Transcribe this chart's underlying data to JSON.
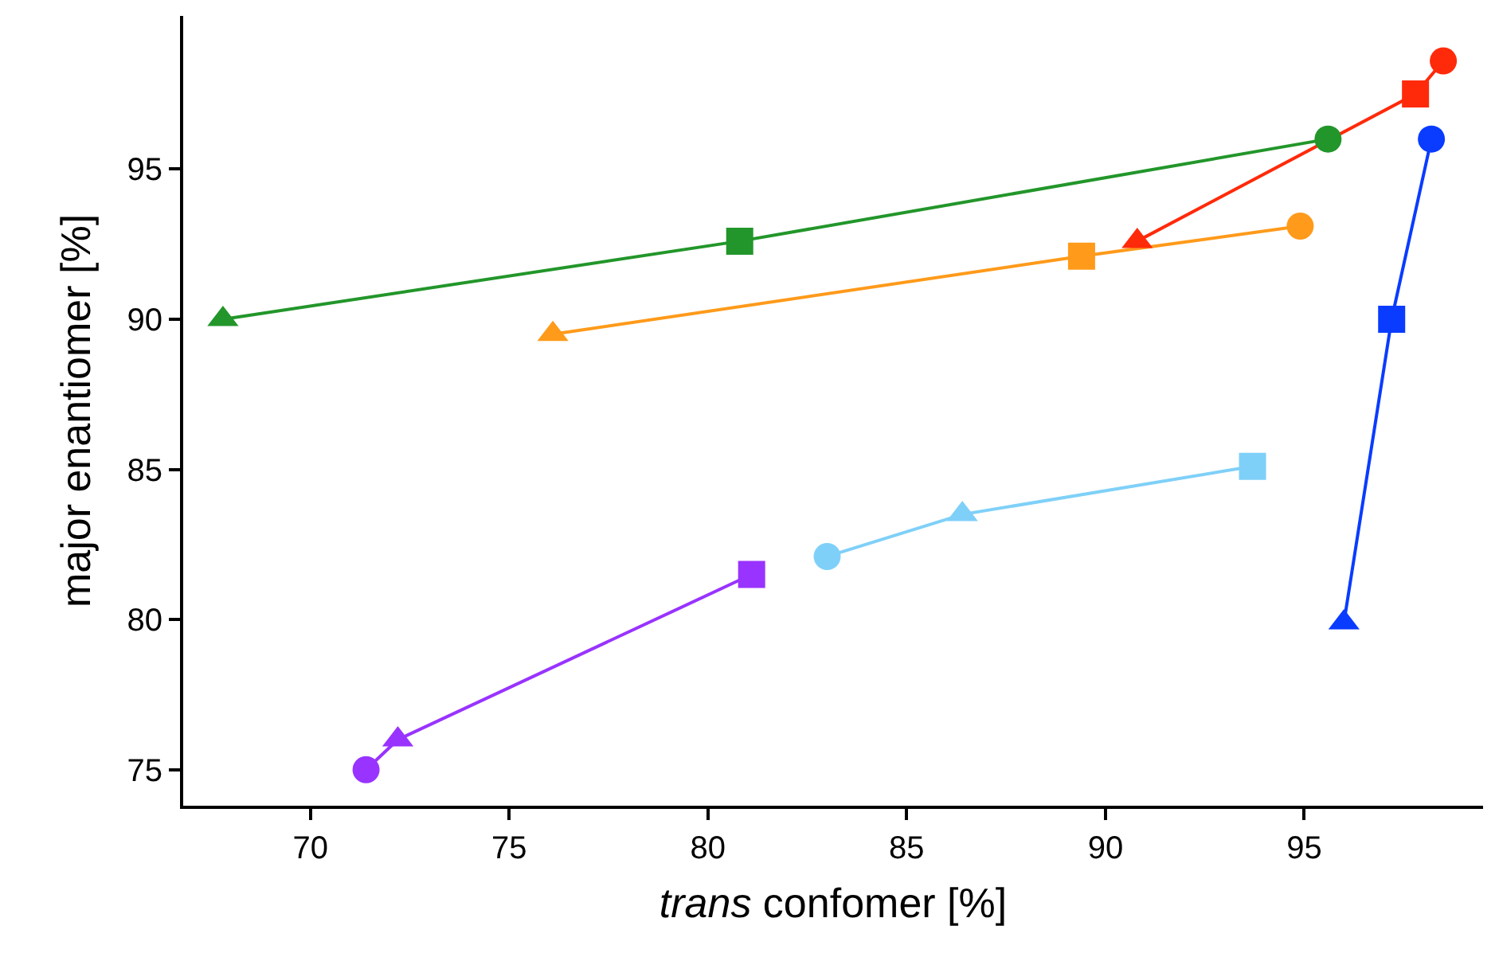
{
  "chart_data": {
    "type": "line",
    "xlabel": "trans confomer [%]",
    "ylabel": "major enantiomer [%]",
    "xlim": [
      66.8,
      99.5
    ],
    "ylim": [
      73.8,
      100.1
    ],
    "xticks": [
      70,
      75,
      80,
      85,
      90,
      95
    ],
    "yticks": [
      75,
      80,
      85,
      90,
      95
    ],
    "series": [
      {
        "marker": "none",
        "color": "#22962a",
        "x": [
          67.8,
          80.8,
          95.6
        ],
        "values": [
          90.0,
          92.6,
          96.0
        ]
      },
      {
        "marker": "none",
        "color": "#ff9a1a",
        "x": [
          76.1,
          89.4,
          94.9
        ],
        "values": [
          89.5,
          92.1,
          93.1
        ]
      },
      {
        "marker": "none",
        "color": "#ff2a0a",
        "x": [
          90.8,
          97.8,
          98.5
        ],
        "values": [
          92.6,
          97.5,
          98.6
        ]
      },
      {
        "marker": "none",
        "color": "#0a3cff",
        "x": [
          96.0,
          97.2,
          98.2
        ],
        "values": [
          79.9,
          90.0,
          96.0
        ]
      },
      {
        "marker": "none",
        "color": "#7fd0f8",
        "x": [
          83.0,
          86.4,
          93.7
        ],
        "values": [
          82.1,
          83.5,
          85.1
        ]
      },
      {
        "marker": "none",
        "color": "#9933ff",
        "x": [
          71.4,
          72.2,
          81.1
        ],
        "values": [
          75.0,
          76.0,
          81.5
        ]
      },
      {
        "type": "scatter",
        "marker": "circle",
        "x": [
          95.6,
          94.9,
          98.5,
          98.2,
          83.0,
          71.4
        ],
        "values": [
          96.0,
          93.1,
          98.6,
          96.0,
          82.1,
          75.0
        ],
        "colors": [
          "#22962a",
          "#ff9a1a",
          "#ff2a0a",
          "#0a3cff",
          "#7fd0f8",
          "#9933ff"
        ]
      },
      {
        "type": "scatter",
        "marker": "square",
        "x": [
          80.8,
          89.4,
          97.8,
          97.2,
          93.7,
          81.1
        ],
        "values": [
          92.6,
          92.1,
          97.5,
          90.0,
          85.1,
          81.5
        ],
        "colors": [
          "#22962a",
          "#ff9a1a",
          "#ff2a0a",
          "#0a3cff",
          "#7fd0f8",
          "#9933ff"
        ]
      },
      {
        "type": "scatter",
        "marker": "triangle",
        "x": [
          67.8,
          76.1,
          90.8,
          96.0,
          86.4,
          72.2
        ],
        "values": [
          90.0,
          89.5,
          92.6,
          79.9,
          83.5,
          76.0
        ],
        "colors": [
          "#22962a",
          "#ff9a1a",
          "#ff2a0a",
          "#0a3cff",
          "#7fd0f8",
          "#9933ff"
        ]
      }
    ]
  }
}
